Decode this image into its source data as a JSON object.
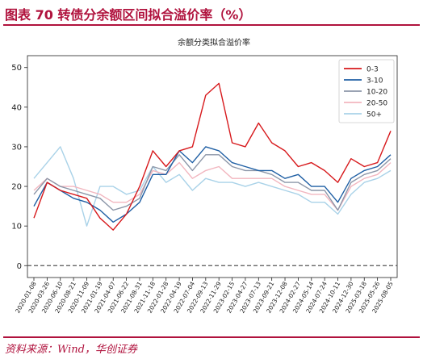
{
  "header": {
    "title": "图表 70  转债分余额区间拟合溢价率（%）"
  },
  "footer": {
    "source": "资料来源：Wind，华创证券"
  },
  "chart_data": {
    "type": "line",
    "title": "余额分类拟合溢价率",
    "xlabel": "",
    "ylabel": "",
    "ylim": [
      -3,
      53
    ],
    "yticks": [
      0,
      10,
      20,
      30,
      40,
      50
    ],
    "xticks": [
      "2020-01-08",
      "2020-03-26",
      "2020-06-10",
      "2020-08-21",
      "2020-11-09",
      "2021-01-19",
      "2021-04-07",
      "2021-06-22",
      "2021-08-31",
      "2021-11-18",
      "2022-01-28",
      "2022-04-19",
      "2022-07-04",
      "2022-09-13",
      "2022-11-29",
      "2023-02-15",
      "2023-04-27",
      "2023-07-13",
      "2023-09-21",
      "2023-12-08",
      "2024-02-27",
      "2024-05-14",
      "2024-07-24",
      "2024-10-11",
      "2024-12-30",
      "2025-03-18",
      "2025-05-26",
      "2025-08-05"
    ],
    "grid": false,
    "legend": "top-right",
    "reference_line": {
      "y": 0,
      "style": "dashed",
      "color": "#555555"
    },
    "series": [
      {
        "name": "0-3",
        "color": "#d7191c",
        "values": [
          12,
          21,
          19,
          18,
          17,
          12,
          9,
          13,
          20,
          29,
          25,
          29,
          30,
          43,
          46,
          31,
          30,
          36,
          31,
          29,
          25,
          26,
          24,
          21,
          27,
          25,
          26,
          34
        ]
      },
      {
        "name": "3-10",
        "color": "#1f5fa4",
        "values": [
          15,
          21,
          19,
          17,
          16,
          14,
          11,
          13,
          16,
          23,
          23,
          29,
          26,
          30,
          29,
          26,
          25,
          24,
          24,
          22,
          23,
          20,
          20,
          16,
          22,
          24,
          25,
          28
        ]
      },
      {
        "name": "10-20",
        "color": "#8c96a8",
        "values": [
          18,
          22,
          20,
          19,
          18,
          17,
          14,
          15,
          17,
          25,
          24,
          28,
          24,
          28,
          28,
          25,
          24,
          24,
          23,
          21,
          21,
          19,
          19,
          14,
          21,
          23,
          24,
          27
        ]
      },
      {
        "name": "20-50",
        "color": "#f2b6bf",
        "values": [
          19,
          22,
          20,
          20,
          19,
          18,
          16,
          16,
          18,
          24,
          23,
          26,
          22,
          24,
          25,
          22,
          22,
          22,
          22,
          20,
          19,
          18,
          18,
          14,
          20,
          22,
          23,
          26
        ]
      },
      {
        "name": "50+",
        "color": "#a9d2e8",
        "values": [
          22,
          26,
          30,
          22,
          10,
          20,
          20,
          18,
          19,
          25,
          21,
          23,
          19,
          22,
          21,
          21,
          20,
          21,
          20,
          19,
          18,
          16,
          16,
          13,
          18,
          21,
          22,
          24
        ]
      }
    ]
  }
}
